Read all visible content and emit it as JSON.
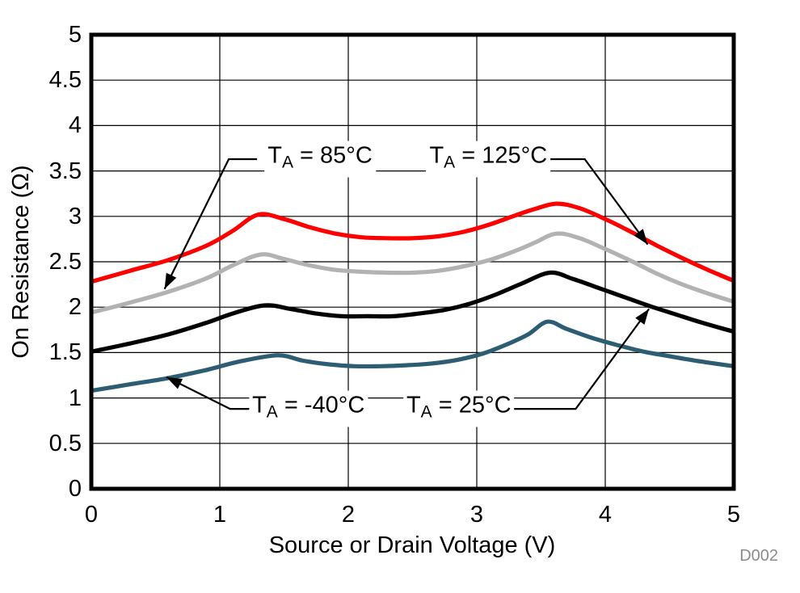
{
  "figure": {
    "watermark": "D002",
    "watermark_color": "#8c8c8c",
    "background_color": "#ffffff",
    "frame_color": "#000000",
    "grid_color": "#000000"
  },
  "chart_data": {
    "type": "line",
    "title": "",
    "xlabel": "Source or Drain Voltage (V)",
    "ylabel": "On Resistance (Ω)",
    "xlim": [
      0,
      5
    ],
    "ylim": [
      0,
      5
    ],
    "xticks": [
      0,
      1,
      2,
      3,
      4,
      5
    ],
    "yticks": [
      0,
      0.5,
      1,
      1.5,
      2,
      2.5,
      3,
      3.5,
      4,
      4.5,
      5
    ],
    "grid": true,
    "legend_position": "inline-annotations",
    "series": [
      {
        "name": "TA = -40°C",
        "temperature": "-40°C",
        "color": "#2d5d73",
        "points": [
          [
            0,
            1.08
          ],
          [
            0.3,
            1.15
          ],
          [
            0.6,
            1.22
          ],
          [
            0.9,
            1.31
          ],
          [
            1.15,
            1.4
          ],
          [
            1.45,
            1.47
          ],
          [
            1.65,
            1.41
          ],
          [
            1.85,
            1.37
          ],
          [
            2.05,
            1.35
          ],
          [
            2.25,
            1.35
          ],
          [
            2.45,
            1.36
          ],
          [
            2.65,
            1.38
          ],
          [
            2.85,
            1.42
          ],
          [
            3.05,
            1.49
          ],
          [
            3.25,
            1.6
          ],
          [
            3.4,
            1.7
          ],
          [
            3.55,
            1.84
          ],
          [
            3.7,
            1.76
          ],
          [
            3.9,
            1.66
          ],
          [
            4.1,
            1.58
          ],
          [
            4.3,
            1.51
          ],
          [
            4.5,
            1.46
          ],
          [
            4.75,
            1.4
          ],
          [
            5,
            1.35
          ]
        ]
      },
      {
        "name": "TA = 25°C",
        "temperature": "25°C",
        "color": "#000000",
        "points": [
          [
            0,
            1.51
          ],
          [
            0.3,
            1.6
          ],
          [
            0.6,
            1.7
          ],
          [
            0.9,
            1.83
          ],
          [
            1.1,
            1.93
          ],
          [
            1.35,
            2.02
          ],
          [
            1.55,
            1.98
          ],
          [
            1.75,
            1.93
          ],
          [
            1.95,
            1.9
          ],
          [
            2.15,
            1.9
          ],
          [
            2.35,
            1.9
          ],
          [
            2.55,
            1.93
          ],
          [
            2.75,
            1.97
          ],
          [
            2.95,
            2.04
          ],
          [
            3.15,
            2.14
          ],
          [
            3.35,
            2.26
          ],
          [
            3.57,
            2.38
          ],
          [
            3.75,
            2.31
          ],
          [
            3.95,
            2.21
          ],
          [
            4.15,
            2.11
          ],
          [
            4.35,
            2.01
          ],
          [
            4.55,
            1.92
          ],
          [
            4.75,
            1.83
          ],
          [
            5,
            1.73
          ]
        ]
      },
      {
        "name": "TA = 85°C",
        "temperature": "85°C",
        "color": "#b2b2b2",
        "points": [
          [
            0,
            1.94
          ],
          [
            0.3,
            2.05
          ],
          [
            0.6,
            2.17
          ],
          [
            0.9,
            2.32
          ],
          [
            1.1,
            2.46
          ],
          [
            1.32,
            2.58
          ],
          [
            1.5,
            2.53
          ],
          [
            1.7,
            2.46
          ],
          [
            1.9,
            2.41
          ],
          [
            2.1,
            2.39
          ],
          [
            2.3,
            2.38
          ],
          [
            2.5,
            2.38
          ],
          [
            2.7,
            2.4
          ],
          [
            2.9,
            2.45
          ],
          [
            3.1,
            2.52
          ],
          [
            3.3,
            2.62
          ],
          [
            3.45,
            2.71
          ],
          [
            3.62,
            2.81
          ],
          [
            3.8,
            2.76
          ],
          [
            4.0,
            2.64
          ],
          [
            4.2,
            2.51
          ],
          [
            4.4,
            2.37
          ],
          [
            4.6,
            2.25
          ],
          [
            4.8,
            2.15
          ],
          [
            5,
            2.06
          ]
        ]
      },
      {
        "name": "TA = 125°C",
        "temperature": "125°C",
        "color": "#ff0000",
        "points": [
          [
            0,
            2.28
          ],
          [
            0.3,
            2.4
          ],
          [
            0.6,
            2.52
          ],
          [
            0.9,
            2.68
          ],
          [
            1.1,
            2.84
          ],
          [
            1.3,
            3.02
          ],
          [
            1.5,
            2.97
          ],
          [
            1.7,
            2.88
          ],
          [
            1.9,
            2.81
          ],
          [
            2.1,
            2.77
          ],
          [
            2.3,
            2.76
          ],
          [
            2.5,
            2.76
          ],
          [
            2.7,
            2.78
          ],
          [
            2.9,
            2.83
          ],
          [
            3.1,
            2.91
          ],
          [
            3.3,
            3.01
          ],
          [
            3.45,
            3.08
          ],
          [
            3.62,
            3.14
          ],
          [
            3.8,
            3.09
          ],
          [
            4.0,
            2.97
          ],
          [
            4.2,
            2.83
          ],
          [
            4.4,
            2.68
          ],
          [
            4.6,
            2.54
          ],
          [
            4.8,
            2.41
          ],
          [
            5,
            2.29
          ]
        ]
      }
    ],
    "annotations": [
      {
        "t": "T",
        "sub": "A",
        "rest": " = 85°C",
        "x": 1.78,
        "y": 3.63,
        "leader": [
          [
            1.29,
            3.63
          ],
          [
            1.07,
            3.63
          ],
          [
            0.57,
            2.2
          ]
        ]
      },
      {
        "t": "T",
        "sub": "A",
        "rest": " = 125°C",
        "x": 3.09,
        "y": 3.63,
        "leader": [
          [
            3.56,
            3.63
          ],
          [
            3.84,
            3.63
          ],
          [
            4.33,
            2.69
          ]
        ]
      },
      {
        "t": "T",
        "sub": "A",
        "rest": " = -40°C",
        "x": 1.69,
        "y": 0.88,
        "leader": [
          [
            1.25,
            0.88
          ],
          [
            1.08,
            0.88
          ],
          [
            0.585,
            1.23
          ]
        ]
      },
      {
        "t": "T",
        "sub": "A",
        "rest": " = 25°C",
        "x": 2.86,
        "y": 0.88,
        "leader": [
          [
            3.26,
            0.88
          ],
          [
            3.77,
            0.88
          ],
          [
            4.34,
            1.98
          ]
        ]
      }
    ]
  }
}
